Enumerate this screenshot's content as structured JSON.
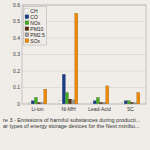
{
  "chart_data": {
    "type": "bar",
    "categories": [
      "Li-ion",
      "Ni-MH",
      "Lead-Acid",
      "SC"
    ],
    "series": [
      {
        "name": "CH",
        "color": "#ffffff",
        "values": [
          0.01,
          0.02,
          0.01,
          0.01
        ]
      },
      {
        "name": "CO",
        "color": "#1a3a8a",
        "values": [
          0.02,
          0.18,
          0.02,
          0.02
        ]
      },
      {
        "name": "NOx",
        "color": "#44aa22",
        "values": [
          0.04,
          0.07,
          0.04,
          0.02
        ]
      },
      {
        "name": "PM10",
        "color": "#5a3010",
        "values": [
          0.01,
          0.03,
          0.01,
          0.01
        ]
      },
      {
        "name": "PM2.5",
        "color": "#999999",
        "values": [
          0.008,
          0.025,
          0.01,
          0.008
        ]
      },
      {
        "name": "SOx",
        "color": "#ee8800",
        "values": [
          0.09,
          0.55,
          0.11,
          0.07
        ]
      }
    ],
    "annotations": [
      "re 3 - Emissions of harmful substances during producti...\nar types of energy storage devices for the Next minibu..."
    ],
    "ylim": [
      0,
      0.6
    ],
    "yticks": [
      0,
      0.1,
      0.2,
      0.3,
      0.4,
      0.5,
      0.6
    ],
    "grid": true,
    "legend": "upper left"
  }
}
